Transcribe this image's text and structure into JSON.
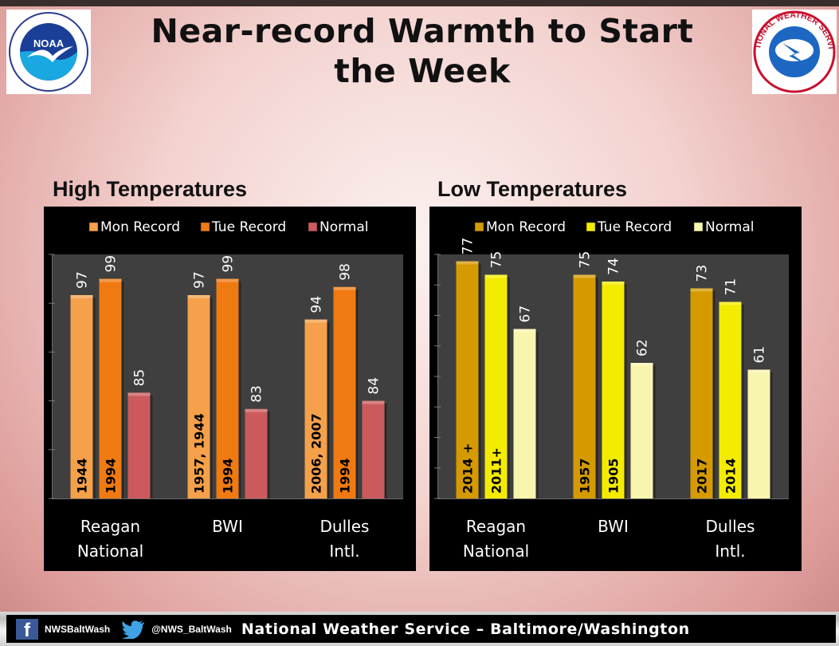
{
  "header": {
    "title": "Near-record Warmth to Start the Week",
    "noaa_logo": {
      "text": "NOAA",
      "icon": "noaa-gull-logo"
    },
    "nws_logo": {
      "text": "NATIONAL WEATHER SERVICE",
      "icon": "nws-lightning-logo"
    }
  },
  "colors": {
    "panel_bg": "#000000",
    "plot_bg": "#3f3f3f",
    "high_mon": "#f5a04a",
    "high_tue": "#ef7a12",
    "high_normal": "#cc5a5d",
    "low_mon": "#d49a00",
    "low_tue": "#f4ec00",
    "low_normal": "#f8f5ae"
  },
  "chart_data": [
    {
      "type": "bar",
      "title": "High Temperatures",
      "categories": [
        "Reagan National",
        "BWI",
        "Dulles Intl."
      ],
      "series": [
        {
          "name": "Mon Record",
          "values": [
            97,
            97,
            94
          ],
          "bar_labels": [
            "1944",
            "1957, 1944",
            "2006, 2007"
          ]
        },
        {
          "name": "Tue Record",
          "values": [
            99,
            99,
            98
          ],
          "bar_labels": [
            "1994",
            "1994",
            "1994"
          ]
        },
        {
          "name": "Normal",
          "values": [
            85,
            83,
            84
          ],
          "bar_labels": [
            "",
            "",
            ""
          ]
        }
      ],
      "ylim": [
        72,
        102
      ],
      "ytick_count": 6,
      "legend": "top",
      "grid": false
    },
    {
      "type": "bar",
      "title": "Low Temperatures",
      "categories": [
        "Reagan National",
        "BWI",
        "Dulles Intl."
      ],
      "series": [
        {
          "name": "Mon Record",
          "values": [
            77,
            75,
            73
          ],
          "bar_labels": [
            "2014 +",
            "1957",
            "2017"
          ]
        },
        {
          "name": "Tue Record",
          "values": [
            75,
            74,
            71
          ],
          "bar_labels": [
            "2011+",
            "1905",
            "2014"
          ]
        },
        {
          "name": "Normal",
          "values": [
            67,
            62,
            61
          ],
          "bar_labels": [
            "",
            "",
            ""
          ]
        }
      ],
      "ylim": [
        42,
        78
      ],
      "ytick_count": 9,
      "legend": "top",
      "grid": false
    }
  ],
  "footer": {
    "facebook_icon": "facebook-icon",
    "facebook_handle": "NWSBaltWash",
    "twitter_icon": "twitter-bird-icon",
    "twitter_handle": "@NWS_BaltWash",
    "title": "National Weather Service – Baltimore/Washington"
  }
}
